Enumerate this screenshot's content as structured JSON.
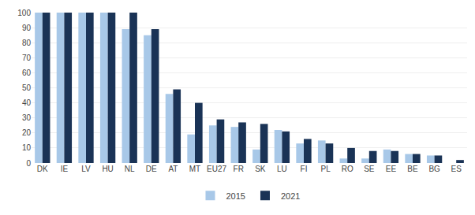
{
  "chart_data": {
    "type": "bar",
    "categories": [
      "DK",
      "IE",
      "LV",
      "HU",
      "NL",
      "DE",
      "AT",
      "MT",
      "EU27",
      "FR",
      "SK",
      "LU",
      "FI",
      "PL",
      "RO",
      "SE",
      "EE",
      "BE",
      "BG",
      "ES"
    ],
    "series": [
      {
        "name": "2015",
        "color": "#a8c8e8",
        "values": [
          100,
          100,
          100,
          100,
          89,
          85,
          46,
          19,
          25,
          24,
          9,
          22,
          13,
          15,
          3,
          3,
          9,
          6,
          5,
          0
        ]
      },
      {
        "name": "2021",
        "color": "#1a3356",
        "values": [
          100,
          100,
          100,
          100,
          100,
          89,
          49,
          40,
          29,
          27,
          26,
          21,
          16,
          13,
          10,
          8,
          8,
          6,
          5,
          2
        ]
      }
    ],
    "ylim": [
      0,
      100
    ],
    "yticks": [
      0,
      10,
      20,
      30,
      40,
      50,
      60,
      70,
      80,
      90,
      100
    ],
    "grid": true,
    "legend": "bottom"
  }
}
